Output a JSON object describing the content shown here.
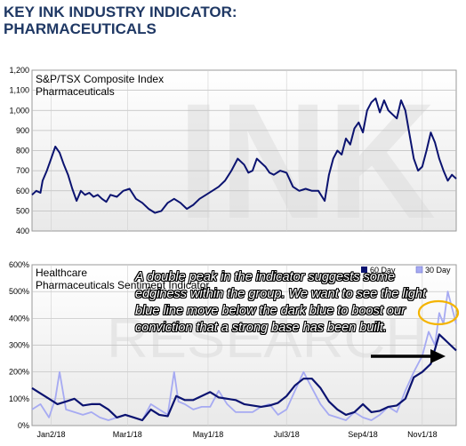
{
  "header": {
    "title_line1": "KEY INK INDUSTRY INDICATOR:",
    "title_line2": "PHARMACEUTICALS"
  },
  "chart_data": [
    {
      "type": "line",
      "title": "S&P/TSX Composite Index",
      "subtitle": "Pharmaceuticals",
      "ylim": [
        400,
        1200
      ],
      "yticks": [
        "400",
        "500",
        "600",
        "700",
        "800",
        "900",
        "1,000",
        "1,100",
        "1,200"
      ],
      "grid": true,
      "x_range": [
        0,
        1
      ],
      "series": [
        {
          "color": "#0b1370",
          "x": [
            0.0,
            0.01,
            0.02,
            0.025,
            0.035,
            0.045,
            0.055,
            0.065,
            0.075,
            0.085,
            0.095,
            0.105,
            0.115,
            0.125,
            0.135,
            0.145,
            0.155,
            0.165,
            0.175,
            0.185,
            0.2,
            0.215,
            0.23,
            0.245,
            0.26,
            0.275,
            0.29,
            0.305,
            0.32,
            0.335,
            0.35,
            0.365,
            0.38,
            0.395,
            0.41,
            0.425,
            0.44,
            0.455,
            0.47,
            0.485,
            0.5,
            0.51,
            0.52,
            0.53,
            0.54,
            0.55,
            0.56,
            0.57,
            0.585,
            0.6,
            0.615,
            0.63,
            0.645,
            0.66,
            0.675,
            0.69,
            0.7,
            0.71,
            0.72,
            0.73,
            0.74,
            0.75,
            0.76,
            0.77,
            0.78,
            0.79,
            0.8,
            0.81,
            0.82,
            0.83,
            0.84,
            0.85,
            0.86,
            0.87,
            0.88,
            0.89,
            0.9,
            0.91,
            0.92,
            0.93,
            0.94,
            0.95,
            0.96,
            0.97,
            0.98,
            0.99,
            1.0
          ],
          "values": [
            580,
            600,
            590,
            650,
            700,
            760,
            820,
            790,
            730,
            680,
            610,
            550,
            600,
            580,
            590,
            570,
            580,
            560,
            545,
            580,
            570,
            600,
            610,
            560,
            540,
            510,
            490,
            500,
            540,
            560,
            540,
            510,
            530,
            560,
            580,
            600,
            620,
            650,
            700,
            760,
            730,
            690,
            700,
            760,
            740,
            720,
            690,
            680,
            700,
            690,
            620,
            600,
            610,
            600,
            600,
            550,
            680,
            760,
            800,
            780,
            860,
            830,
            910,
            940,
            890,
            1000,
            1040,
            1060,
            990,
            1050,
            1000,
            980,
            960,
            1050,
            1000,
            880,
            760,
            700,
            720,
            800,
            890,
            840,
            760,
            700,
            650,
            680,
            660
          ]
        }
      ]
    },
    {
      "type": "line",
      "title": "Healthcare",
      "subtitle": "Pharmaceuticals Sentiment Indicator",
      "ylim": [
        0,
        600
      ],
      "yticks": [
        "0%",
        "100%",
        "200%",
        "300%",
        "400%",
        "500%",
        "600%"
      ],
      "categories": [
        "Jan2/18",
        "Mar1/18",
        "May1/18",
        "Jul3/18",
        "Sep4/18",
        "Nov1/18"
      ],
      "grid": true,
      "legend_position": "top-right",
      "x_range": [
        0,
        1
      ],
      "series": [
        {
          "name": "60 Day",
          "color": "#0b1370",
          "x": [
            0.0,
            0.02,
            0.04,
            0.06,
            0.08,
            0.1,
            0.12,
            0.14,
            0.16,
            0.18,
            0.2,
            0.22,
            0.24,
            0.26,
            0.28,
            0.3,
            0.32,
            0.34,
            0.36,
            0.38,
            0.4,
            0.42,
            0.44,
            0.46,
            0.48,
            0.5,
            0.52,
            0.54,
            0.56,
            0.58,
            0.6,
            0.62,
            0.64,
            0.66,
            0.68,
            0.7,
            0.72,
            0.74,
            0.76,
            0.78,
            0.8,
            0.82,
            0.84,
            0.86,
            0.88,
            0.9,
            0.92,
            0.94,
            0.96,
            0.98,
            1.0
          ],
          "values": [
            140,
            120,
            100,
            80,
            90,
            100,
            75,
            80,
            80,
            60,
            30,
            40,
            30,
            20,
            60,
            40,
            35,
            110,
            95,
            95,
            110,
            125,
            105,
            100,
            95,
            80,
            75,
            70,
            75,
            85,
            110,
            150,
            175,
            175,
            140,
            90,
            60,
            40,
            50,
            80,
            50,
            55,
            70,
            75,
            100,
            180,
            200,
            230,
            340,
            310,
            280
          ]
        },
        {
          "name": "30 Day",
          "color": "#a6aaf2",
          "x": [
            0.0,
            0.02,
            0.04,
            0.055,
            0.065,
            0.08,
            0.1,
            0.12,
            0.14,
            0.16,
            0.18,
            0.2,
            0.22,
            0.24,
            0.26,
            0.28,
            0.3,
            0.32,
            0.335,
            0.345,
            0.36,
            0.38,
            0.4,
            0.42,
            0.44,
            0.46,
            0.48,
            0.5,
            0.52,
            0.54,
            0.56,
            0.58,
            0.6,
            0.62,
            0.64,
            0.66,
            0.68,
            0.7,
            0.72,
            0.74,
            0.76,
            0.78,
            0.8,
            0.82,
            0.84,
            0.86,
            0.88,
            0.9,
            0.92,
            0.935,
            0.95,
            0.96,
            0.97,
            0.98,
            0.99,
            1.0
          ],
          "values": [
            60,
            80,
            30,
            100,
            200,
            60,
            50,
            40,
            50,
            30,
            20,
            30,
            40,
            30,
            20,
            80,
            60,
            40,
            200,
            90,
            80,
            60,
            70,
            70,
            130,
            80,
            50,
            50,
            50,
            70,
            80,
            40,
            60,
            130,
            200,
            140,
            80,
            40,
            30,
            20,
            50,
            30,
            20,
            40,
            70,
            50,
            130,
            200,
            260,
            350,
            300,
            420,
            380,
            500,
            440,
            380
          ]
        }
      ]
    }
  ],
  "annotation": {
    "text": "A double peak in the indicator suggests some edginess within the group. We want to see the light blue line move below the dark blue to boost our conviction that a strong base has been built."
  },
  "watermark": {
    "top": "INK",
    "bottom": "RESEARCH"
  },
  "colors": {
    "title": "#1f3864",
    "dark_line": "#0b1370",
    "light_line": "#a6aaf2",
    "highlight_ellipse": "#f4b400",
    "arrow": "#000000"
  }
}
